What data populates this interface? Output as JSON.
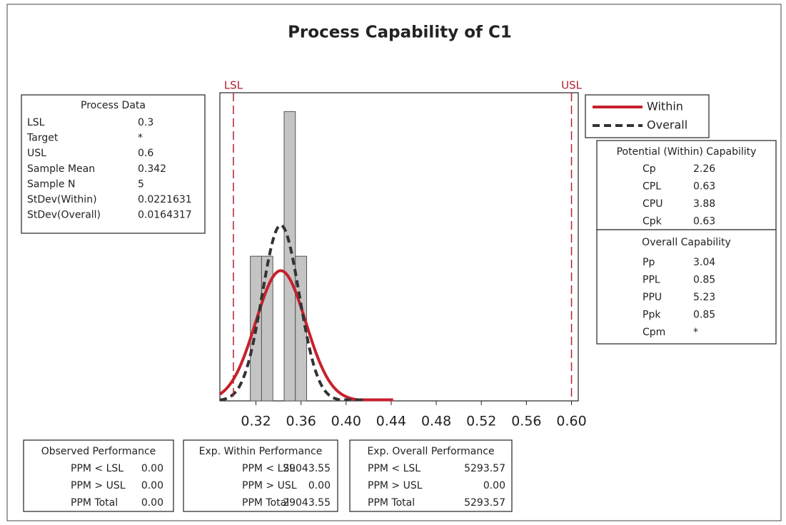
{
  "chart_data": {
    "type": "histogram",
    "title": "Process Capability of C1",
    "bins": [
      0.315,
      0.325,
      0.335,
      0.345,
      0.355,
      0.365
    ],
    "counts": [
      1,
      1,
      0,
      2,
      1
    ],
    "bar_color": "#c4c4c4",
    "xlim": [
      0.288,
      0.606
    ],
    "ylim": [
      0,
      2.13
    ],
    "xticks": [
      0.32,
      0.36,
      {
        "value": 0.4,
        "label": "0.40"
      },
      0.44,
      {
        "value": 0.48,
        "label": "0.48"
      },
      0.52,
      0.56,
      {
        "value": 0.6,
        "label": "0.60"
      }
    ],
    "spec_lines": [
      {
        "label": "LSL",
        "value": 0.3
      },
      {
        "label": "USL",
        "value": 0.6
      }
    ],
    "spec_color": "#b0222e",
    "series": [
      {
        "name": "Within",
        "color": "#c8202c",
        "dashed": false
      },
      {
        "name": "Overall",
        "color": "#333333",
        "dashed": true
      }
    ]
  },
  "process_data": {
    "title": "Process Data",
    "rows": [
      [
        "LSL",
        0.3
      ],
      [
        "Target",
        "*"
      ],
      [
        "USL",
        0.6
      ],
      [
        "Sample Mean",
        0.342
      ],
      [
        "Sample N",
        5
      ],
      [
        "StDev(Within)",
        0.0221631
      ],
      [
        "StDev(Overall)",
        0.0164317
      ]
    ]
  },
  "potential_capability": {
    "title": "Potential (Within) Capability",
    "rows": [
      [
        "Cp",
        2.26
      ],
      [
        "CPL",
        0.63
      ],
      [
        "CPU",
        3.88
      ],
      [
        "Cpk",
        0.63
      ]
    ]
  },
  "overall_capability": {
    "title": "Overall Capability",
    "rows": [
      [
        "Pp",
        3.04
      ],
      [
        "PPL",
        0.85
      ],
      [
        "PPU",
        5.23
      ],
      [
        "Ppk",
        0.85
      ],
      [
        "Cpm",
        "*"
      ]
    ]
  },
  "performance": [
    {
      "title": "Observed Performance",
      "rows": [
        [
          "PPM < LSL",
          "0.00"
        ],
        [
          "PPM > USL",
          "0.00"
        ],
        [
          "PPM Total",
          "0.00"
        ]
      ]
    },
    {
      "title": "Exp. Within Performance",
      "rows": [
        [
          "PPM < LSL",
          29043.55
        ],
        [
          "PPM > USL",
          "0.00"
        ],
        [
          "PPM Total",
          29043.55
        ]
      ]
    },
    {
      "title": "Exp. Overall Performance",
      "rows": [
        [
          "PPM < LSL",
          5293.57
        ],
        [
          "PPM > USL",
          "0.00"
        ],
        [
          "PPM Total",
          5293.57
        ]
      ]
    }
  ]
}
